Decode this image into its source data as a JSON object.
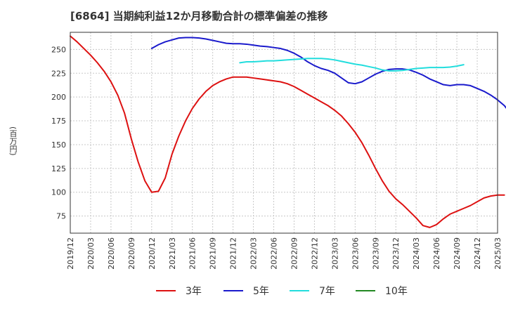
{
  "chart_data": {
    "type": "line",
    "title": "[6864]  当期純利益12か月移動合計の標準偏差の推移",
    "xlabel": "",
    "ylabel": "(百万円)",
    "x_start": "2019-12",
    "x_tick_labels": [
      "2019/12",
      "2020/03",
      "2020/06",
      "2020/09",
      "2020/12",
      "2021/03",
      "2021/06",
      "2021/09",
      "2021/12",
      "2022/03",
      "2022/06",
      "2022/09",
      "2022/12",
      "2023/03",
      "2023/06",
      "2023/09",
      "2023/12",
      "2024/03",
      "2024/06",
      "2024/09",
      "2024/12",
      "2025/03"
    ],
    "y_ticks": [
      75,
      100,
      125,
      150,
      175,
      200,
      225,
      250
    ],
    "ylim": [
      57,
      268
    ],
    "grid": true,
    "legend": "bottom",
    "series": [
      {
        "name": "3年",
        "color": "#dd1111",
        "start": "2019-12",
        "values": [
          264,
          258,
          251,
          244,
          236,
          227,
          216,
          202,
          183,
          156,
          132,
          112,
          100,
          101,
          115,
          140,
          159,
          175,
          188,
          198,
          206,
          212,
          216,
          219,
          221,
          221,
          221,
          220,
          219,
          218,
          217,
          216,
          214,
          211,
          207,
          203,
          199,
          195,
          191,
          186,
          180,
          172,
          163,
          152,
          139,
          125,
          112,
          101,
          93,
          87,
          80,
          73,
          65,
          63,
          66,
          72,
          77,
          80,
          83,
          86,
          90,
          94,
          96,
          97,
          97
        ],
        "end_label": ""
      },
      {
        "name": "5年",
        "color": "#1a1acc",
        "start": "2020-12",
        "values": [
          251,
          255,
          258,
          260,
          262,
          262.5,
          262.5,
          262,
          261,
          259.5,
          258,
          256.5,
          256,
          256,
          255.5,
          254.5,
          253.5,
          253,
          252,
          251,
          249,
          246,
          242,
          237,
          233,
          230,
          228,
          225,
          220,
          215,
          214,
          216,
          220,
          224,
          227,
          229,
          229.5,
          229.5,
          228.5,
          226,
          223,
          219,
          216,
          213,
          212,
          213,
          213,
          212,
          209,
          206,
          202,
          197,
          191,
          182
        ],
        "end_label": ""
      },
      {
        "name": "7年",
        "color": "#22dddd",
        "start": "2022-01",
        "values": [
          236,
          237,
          237,
          237.5,
          238,
          238,
          238.5,
          239,
          239.5,
          240,
          240.5,
          240.5,
          240.5,
          240,
          239,
          237.5,
          236,
          234.5,
          233.5,
          232,
          230.5,
          228.5,
          227.5,
          227.5,
          228,
          229,
          230,
          230.5,
          231,
          231,
          231,
          231.5,
          232.5,
          234
        ],
        "end_label": ""
      },
      {
        "name": "10年",
        "color": "#228822",
        "start": "",
        "values": [],
        "end_label": ""
      }
    ]
  }
}
